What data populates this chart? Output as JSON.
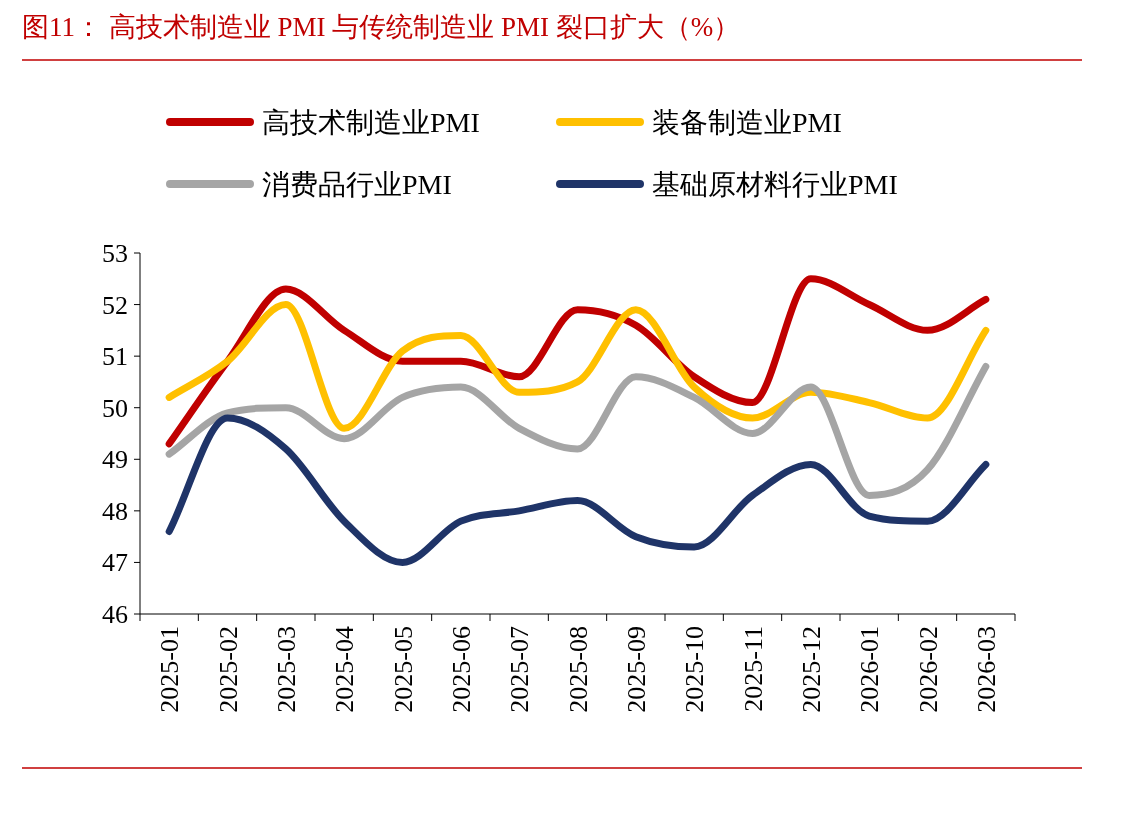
{
  "chart_data": {
    "type": "line",
    "title": "图11：  高技术制造业 PMI 与传统制造业 PMI 裂口扩大（%）",
    "categories": [
      "2025-01",
      "2025-02",
      "2025-03",
      "2025-04",
      "2025-05",
      "2025-06",
      "2025-07",
      "2025-08",
      "2025-09",
      "2025-10",
      "2025-11",
      "2025-12",
      "2026-01",
      "2026-02",
      "2026-03"
    ],
    "series": [
      {
        "name": "高技术制造业PMI",
        "color": "#c00000",
        "values": [
          49.3,
          50.9,
          52.3,
          51.5,
          50.9,
          50.9,
          50.6,
          51.9,
          51.6,
          50.6,
          50.1,
          52.5,
          52.0,
          51.5,
          52.1
        ]
      },
      {
        "name": "装备制造业PMI",
        "color": "#ffc000",
        "values": [
          50.2,
          50.9,
          52.0,
          49.6,
          51.1,
          51.4,
          50.3,
          50.5,
          51.9,
          50.4,
          49.8,
          50.3,
          50.1,
          49.8,
          51.5
        ]
      },
      {
        "name": "消费品行业PMI",
        "color": "#a5a5a5",
        "values": [
          49.1,
          49.9,
          50.0,
          49.4,
          50.2,
          50.4,
          49.6,
          49.2,
          50.6,
          50.2,
          49.5,
          50.4,
          48.3,
          48.8,
          50.8
        ]
      },
      {
        "name": "基础原材料行业PMI",
        "color": "#1f3468",
        "values": [
          47.6,
          49.8,
          49.2,
          47.8,
          47.0,
          47.8,
          48.0,
          48.2,
          47.5,
          47.3,
          48.3,
          48.9,
          47.9,
          47.8,
          48.9
        ]
      }
    ],
    "ylim": [
      46,
      53
    ],
    "yticks": [
      46,
      47,
      48,
      49,
      50,
      51,
      52,
      53
    ],
    "grid": false,
    "legend": "top",
    "marker": "none",
    "line_style": "solid"
  }
}
